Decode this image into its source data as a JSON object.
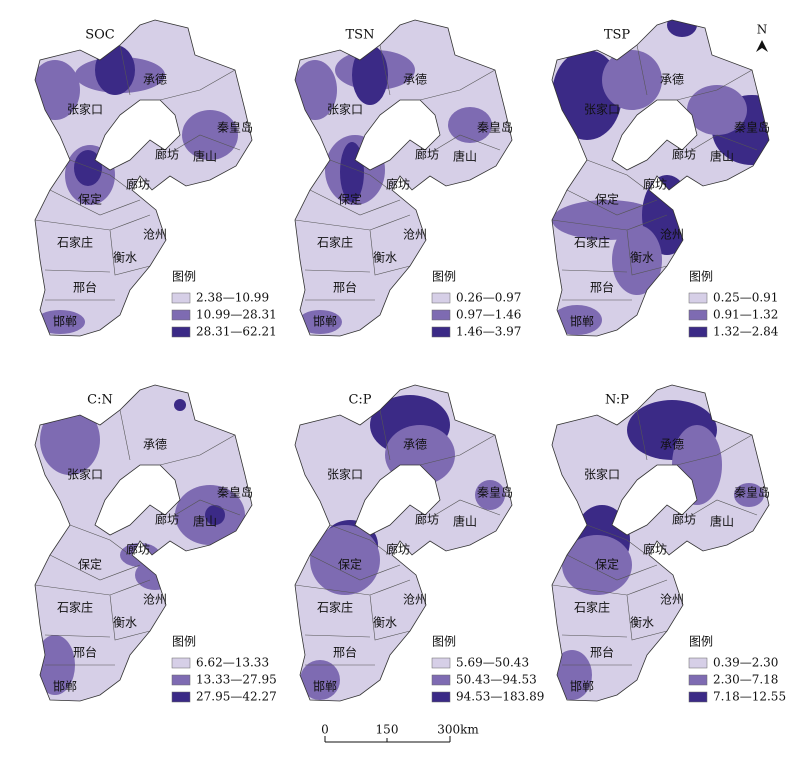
{
  "north": "N",
  "cities": [
    "承德",
    "张家口",
    "秦皇岛",
    "廊坊",
    "唐山",
    "廊坊",
    "保定",
    "石家庄",
    "沧州",
    "衡水",
    "邢台",
    "邯郸"
  ],
  "panels": [
    {
      "title": "SOC",
      "legend_title": "图例",
      "legend": [
        {
          "label": "2.38—10.99",
          "color": "#d6cfe7"
        },
        {
          "label": "10.99—28.31",
          "color": "#7e6bb2"
        },
        {
          "label": "28.31—62.21",
          "color": "#3b2a86"
        }
      ]
    },
    {
      "title": "TSN",
      "legend_title": "图例",
      "legend": [
        {
          "label": "0.26—0.97",
          "color": "#d6cfe7"
        },
        {
          "label": "0.97—1.46",
          "color": "#7e6bb2"
        },
        {
          "label": "1.46—3.97",
          "color": "#3b2a86"
        }
      ]
    },
    {
      "title": "TSP",
      "legend_title": "图例",
      "legend": [
        {
          "label": "0.25—0.91",
          "color": "#d6cfe7"
        },
        {
          "label": "0.91—1.32",
          "color": "#7e6bb2"
        },
        {
          "label": "1.32—2.84",
          "color": "#3b2a86"
        }
      ]
    },
    {
      "title": "C:N",
      "legend_title": "图例",
      "legend": [
        {
          "label": "6.62—13.33",
          "color": "#d6cfe7"
        },
        {
          "label": "13.33—27.95",
          "color": "#7e6bb2"
        },
        {
          "label": "27.95—42.27",
          "color": "#3b2a86"
        }
      ]
    },
    {
      "title": "C:P",
      "legend_title": "图例",
      "legend": [
        {
          "label": "5.69—50.43",
          "color": "#d6cfe7"
        },
        {
          "label": "50.43—94.53",
          "color": "#7e6bb2"
        },
        {
          "label": "94.53—183.89",
          "color": "#3b2a86"
        }
      ]
    },
    {
      "title": "N:P",
      "legend_title": "图例",
      "legend": [
        {
          "label": "0.39—2.30",
          "color": "#d6cfe7"
        },
        {
          "label": "2.30—7.18",
          "color": "#7e6bb2"
        },
        {
          "label": "7.18—12.55",
          "color": "#3b2a86"
        }
      ]
    }
  ],
  "scale_bar": {
    "ticks": [
      "0",
      "150",
      "300km"
    ]
  }
}
